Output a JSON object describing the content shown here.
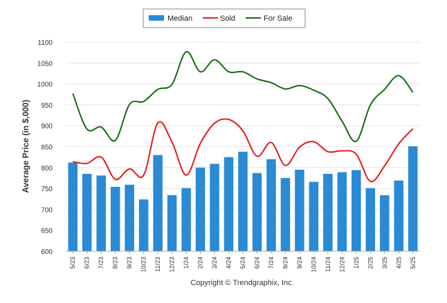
{
  "chart_data": {
    "type": "bar",
    "ylabel": "Average Price (in $,000)",
    "xlabel": "",
    "ylim": [
      600,
      1100
    ],
    "yticks": [
      600,
      650,
      700,
      750,
      800,
      850,
      900,
      950,
      1000,
      1050,
      1100
    ],
    "grid": true,
    "legend_position": "top-center",
    "categories": [
      "5/23",
      "6/23",
      "7/23",
      "8/23",
      "9/23",
      "10/23",
      "11/23",
      "12/23",
      "1/24",
      "2/24",
      "3/24",
      "4/24",
      "5/24",
      "6/24",
      "7/24",
      "8/24",
      "9/24",
      "10/24",
      "11/24",
      "12/24",
      "1/25",
      "2/25",
      "3/25",
      "4/25",
      "5/25"
    ],
    "series": [
      {
        "name": "Median",
        "kind": "bar",
        "color": "#2a8ad4",
        "values": [
          812,
          785,
          781,
          754,
          759,
          724,
          830,
          734,
          751,
          800,
          809,
          825,
          838,
          787,
          820,
          775,
          795,
          766,
          785,
          789,
          794,
          751,
          734,
          769,
          851
        ]
      },
      {
        "name": "Sold",
        "kind": "line",
        "color": "#e8191b",
        "values": [
          814,
          810,
          825,
          772,
          797,
          782,
          907,
          861,
          782,
          858,
          906,
          915,
          888,
          827,
          860,
          805,
          849,
          862,
          838,
          840,
          832,
          767,
          804,
          857,
          893
        ]
      },
      {
        "name": "For Sale",
        "kind": "line",
        "color": "#116b0f",
        "values": [
          977,
          892,
          897,
          865,
          951,
          958,
          987,
          999,
          1077,
          1029,
          1058,
          1029,
          1029,
          1012,
          1003,
          988,
          996,
          985,
          965,
          911,
          863,
          950,
          987,
          1020,
          980
        ]
      }
    ],
    "footer": "Copyright © Trendgraphix, Inc."
  }
}
